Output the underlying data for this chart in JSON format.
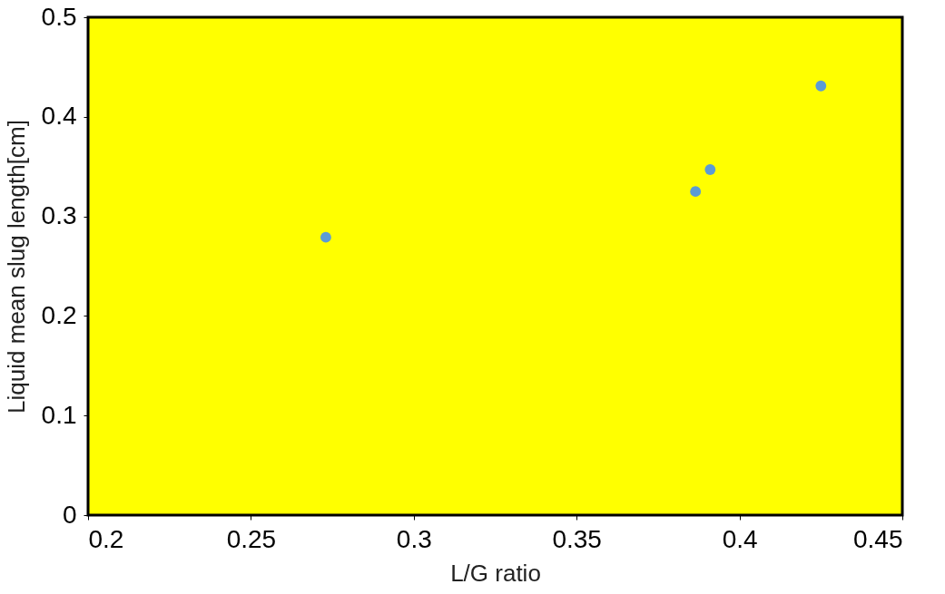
{
  "chart_data": {
    "type": "scatter",
    "xlabel": "L/G ratio",
    "ylabel": "Liquid mean slug length[cm]",
    "x": [
      0.273,
      0.3865,
      0.391,
      0.425
    ],
    "series": [
      {
        "color": "#5b9bd5",
        "values": [
          0.279,
          0.325,
          0.347,
          0.431
        ]
      }
    ],
    "xlim": [
      0.2,
      0.45
    ],
    "xticks": [
      0.2,
      0.25,
      0.3,
      0.35,
      0.4,
      0.45
    ],
    "ylim": [
      0,
      0.5
    ],
    "yticks": [
      0,
      0.1,
      0.2,
      0.3,
      0.4,
      0.5
    ],
    "grid": false,
    "marker": "circle"
  }
}
